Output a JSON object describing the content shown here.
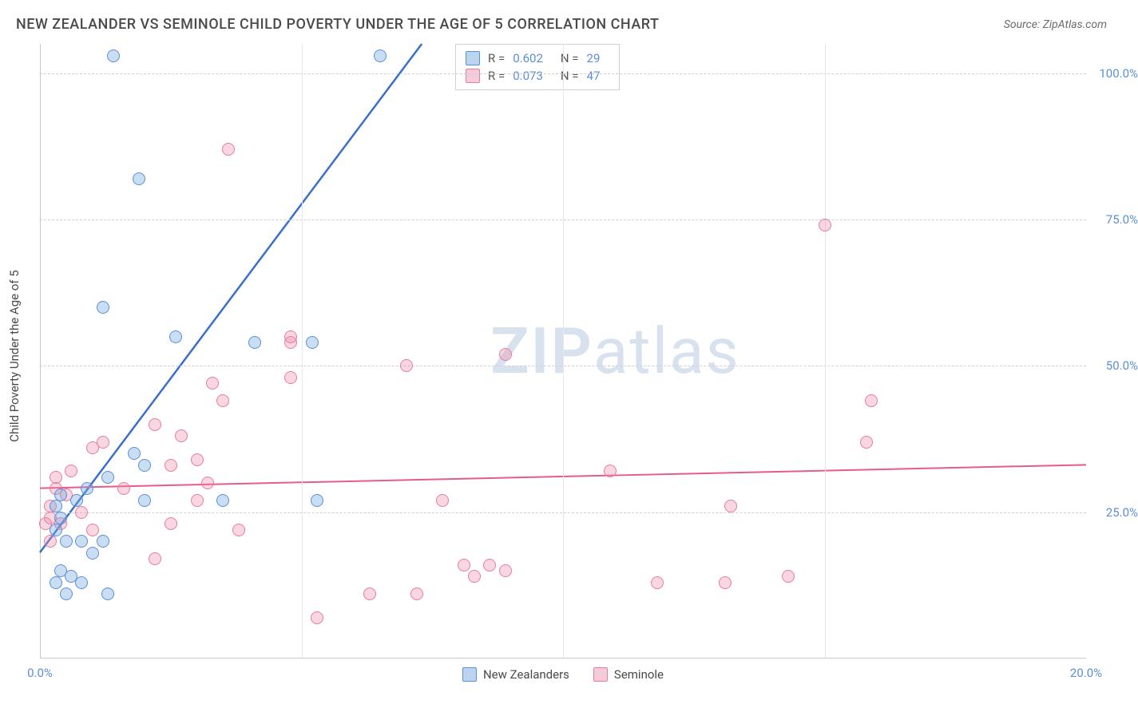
{
  "title": "NEW ZEALANDER VS SEMINOLE CHILD POVERTY UNDER THE AGE OF 5 CORRELATION CHART",
  "source": "Source: ZipAtlas.com",
  "y_axis_title": "Child Poverty Under the Age of 5",
  "watermark": {
    "zip": "ZIP",
    "atlas": "atlas"
  },
  "chart": {
    "type": "scatter",
    "xlim": [
      0,
      20
    ],
    "ylim": [
      0,
      105
    ],
    "xticks": [
      {
        "value": 0,
        "label": "0.0%"
      },
      {
        "value": 20,
        "label": "20.0%"
      }
    ],
    "xtick_minor": [
      5,
      10,
      15
    ],
    "yticks": [
      {
        "value": 25,
        "label": "25.0%"
      },
      {
        "value": 50,
        "label": "50.0%"
      },
      {
        "value": 75,
        "label": "75.0%"
      },
      {
        "value": 100,
        "label": "100.0%"
      }
    ],
    "colors": {
      "blue_fill": "rgba(120,170,225,0.4)",
      "blue_stroke": "#5b8fd6",
      "pink_fill": "rgba(235,140,170,0.35)",
      "pink_stroke": "#e87ba0",
      "grid": "#d0d0d0",
      "axis": "#c8c8c8",
      "tick_text": "#5b8fd6",
      "background": "#ffffff"
    },
    "stats": [
      {
        "series": "blue",
        "r_label": "R =",
        "r": "0.602",
        "n_label": "N =",
        "n": "29"
      },
      {
        "series": "pink",
        "r_label": "R =",
        "r": "0.073",
        "n_label": "N =",
        "n": "47"
      }
    ],
    "legend": [
      {
        "series": "blue",
        "label": "New Zealanders"
      },
      {
        "series": "pink",
        "label": "Seminole"
      }
    ],
    "trend_lines": [
      {
        "series": "blue",
        "x1": 0,
        "y1": 18,
        "x2": 7.3,
        "y2": 105,
        "color": "#3b6fc9",
        "width": 2.5
      },
      {
        "series": "pink",
        "x1": 0,
        "y1": 29,
        "x2": 20,
        "y2": 33,
        "color": "#e85a8a",
        "width": 2
      }
    ],
    "points_blue": [
      {
        "x": 1.4,
        "y": 103
      },
      {
        "x": 1.9,
        "y": 82
      },
      {
        "x": 1.2,
        "y": 60
      },
      {
        "x": 4.1,
        "y": 54
      },
      {
        "x": 5.2,
        "y": 54
      },
      {
        "x": 2.6,
        "y": 55
      },
      {
        "x": 5.3,
        "y": 27
      },
      {
        "x": 3.5,
        "y": 27
      },
      {
        "x": 2.0,
        "y": 27
      },
      {
        "x": 2.0,
        "y": 33
      },
      {
        "x": 1.8,
        "y": 35
      },
      {
        "x": 1.3,
        "y": 31
      },
      {
        "x": 0.9,
        "y": 29
      },
      {
        "x": 0.7,
        "y": 27
      },
      {
        "x": 0.4,
        "y": 24
      },
      {
        "x": 0.5,
        "y": 20
      },
      {
        "x": 0.8,
        "y": 20
      },
      {
        "x": 1.2,
        "y": 20
      },
      {
        "x": 1.0,
        "y": 18
      },
      {
        "x": 0.4,
        "y": 15
      },
      {
        "x": 0.6,
        "y": 14
      },
      {
        "x": 0.3,
        "y": 13
      },
      {
        "x": 0.8,
        "y": 13
      },
      {
        "x": 1.3,
        "y": 11
      },
      {
        "x": 0.5,
        "y": 11
      },
      {
        "x": 0.4,
        "y": 28
      },
      {
        "x": 0.3,
        "y": 26
      },
      {
        "x": 6.5,
        "y": 103
      },
      {
        "x": 0.3,
        "y": 22
      }
    ],
    "points_pink": [
      {
        "x": 3.6,
        "y": 87
      },
      {
        "x": 15.0,
        "y": 74
      },
      {
        "x": 8.9,
        "y": 52
      },
      {
        "x": 7.0,
        "y": 50
      },
      {
        "x": 4.8,
        "y": 54
      },
      {
        "x": 4.8,
        "y": 48
      },
      {
        "x": 3.3,
        "y": 47
      },
      {
        "x": 3.5,
        "y": 44
      },
      {
        "x": 15.9,
        "y": 44
      },
      {
        "x": 2.2,
        "y": 40
      },
      {
        "x": 2.7,
        "y": 38
      },
      {
        "x": 15.8,
        "y": 37
      },
      {
        "x": 1.2,
        "y": 37
      },
      {
        "x": 1.0,
        "y": 36
      },
      {
        "x": 3.0,
        "y": 34
      },
      {
        "x": 2.5,
        "y": 33
      },
      {
        "x": 10.9,
        "y": 32
      },
      {
        "x": 3.2,
        "y": 30
      },
      {
        "x": 1.6,
        "y": 29
      },
      {
        "x": 0.3,
        "y": 29
      },
      {
        "x": 0.5,
        "y": 28
      },
      {
        "x": 7.7,
        "y": 27
      },
      {
        "x": 13.2,
        "y": 26
      },
      {
        "x": 0.2,
        "y": 26
      },
      {
        "x": 0.2,
        "y": 24
      },
      {
        "x": 0.4,
        "y": 23
      },
      {
        "x": 0.1,
        "y": 23
      },
      {
        "x": 2.5,
        "y": 23
      },
      {
        "x": 3.8,
        "y": 22
      },
      {
        "x": 1.0,
        "y": 22
      },
      {
        "x": 2.2,
        "y": 17
      },
      {
        "x": 8.1,
        "y": 16
      },
      {
        "x": 8.6,
        "y": 16
      },
      {
        "x": 8.9,
        "y": 15
      },
      {
        "x": 8.3,
        "y": 14
      },
      {
        "x": 11.8,
        "y": 13
      },
      {
        "x": 13.1,
        "y": 13
      },
      {
        "x": 14.3,
        "y": 14
      },
      {
        "x": 6.3,
        "y": 11
      },
      {
        "x": 7.2,
        "y": 11
      },
      {
        "x": 5.3,
        "y": 7
      },
      {
        "x": 0.2,
        "y": 20
      },
      {
        "x": 0.6,
        "y": 32
      },
      {
        "x": 0.3,
        "y": 31
      },
      {
        "x": 0.8,
        "y": 25
      },
      {
        "x": 3.0,
        "y": 27
      },
      {
        "x": 4.8,
        "y": 55
      }
    ]
  }
}
